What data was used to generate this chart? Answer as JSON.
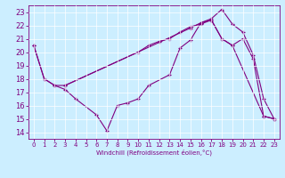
{
  "bg_color": "#cceeff",
  "line_color": "#800080",
  "xlim": [
    -0.5,
    23.5
  ],
  "ylim": [
    13.5,
    23.5
  ],
  "yticks": [
    14,
    15,
    16,
    17,
    18,
    19,
    20,
    21,
    22,
    23
  ],
  "xticks": [
    0,
    1,
    2,
    3,
    4,
    5,
    6,
    7,
    8,
    9,
    10,
    11,
    12,
    13,
    14,
    15,
    16,
    17,
    18,
    19,
    20,
    21,
    22,
    23
  ],
  "xlabel": "Windchill (Refroidissement éolien,°C)",
  "series": [
    {
      "x": [
        0,
        1,
        2,
        3,
        4,
        6,
        7,
        8,
        9,
        10,
        11,
        13,
        14,
        15,
        16,
        17,
        18,
        19,
        20,
        21,
        22,
        23
      ],
      "y": [
        20.5,
        18.0,
        17.5,
        17.2,
        16.5,
        15.3,
        14.1,
        16.0,
        16.2,
        16.5,
        17.5,
        18.3,
        20.3,
        20.9,
        22.2,
        22.5,
        23.2,
        22.1,
        21.5,
        19.8,
        16.5,
        15.0
      ]
    },
    {
      "x": [
        0,
        1,
        2,
        3,
        15,
        16,
        17,
        18,
        19,
        20,
        21,
        22,
        23
      ],
      "y": [
        20.5,
        18.0,
        17.5,
        17.5,
        21.8,
        22.2,
        22.4,
        21.0,
        20.5,
        21.0,
        19.5,
        15.2,
        15.0
      ]
    },
    {
      "x": [
        3,
        10,
        11,
        12,
        13,
        14,
        15,
        16,
        17,
        18,
        19,
        22,
        23
      ],
      "y": [
        17.5,
        20.0,
        20.5,
        20.8,
        21.0,
        21.5,
        21.9,
        22.1,
        22.4,
        21.0,
        20.5,
        15.2,
        15.0
      ]
    }
  ]
}
